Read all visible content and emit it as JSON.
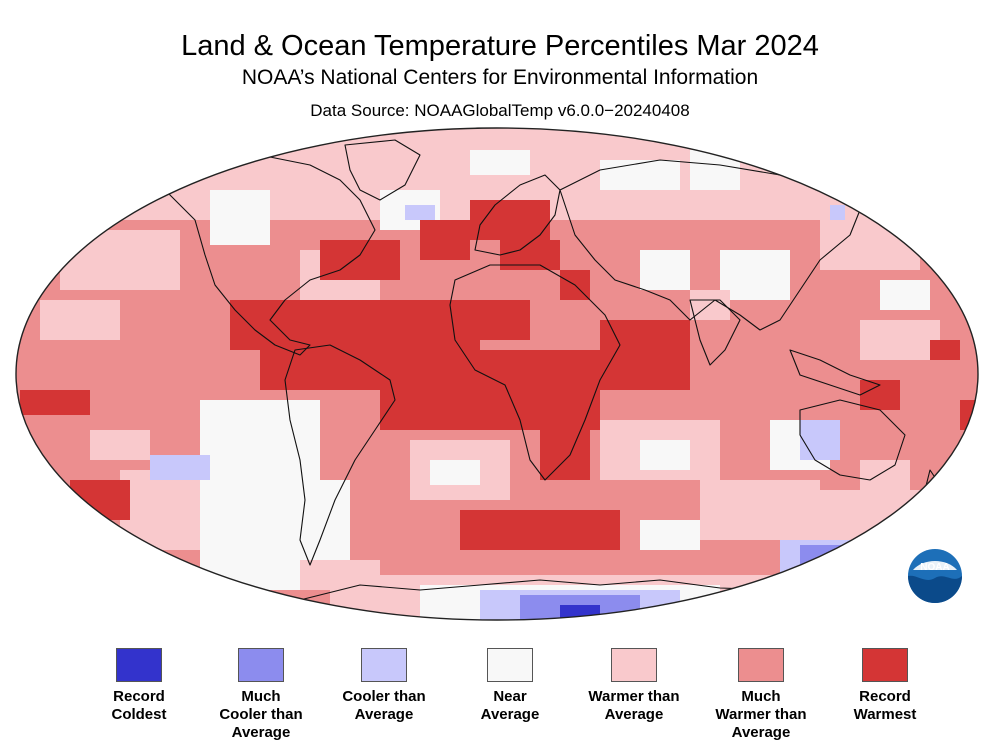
{
  "header": {
    "title": "Land & Ocean Temperature Percentiles Mar 2024",
    "subtitle": "NOAA’s National Centers for Environmental Information",
    "source": "Data Source: NOAAGlobalTemp v6.0.0−20240408"
  },
  "colors": {
    "record_coldest": "#3333cc",
    "much_cooler": "#8c8cee",
    "cooler": "#c8c8fb",
    "near": "#f8f8f8",
    "warmer": "#f9c9cc",
    "much_warmer": "#ec8e8f",
    "record_warmest": "#d43535"
  },
  "legend": [
    {
      "label": "Record\nColdest",
      "color": "#3333cc"
    },
    {
      "label": "Much\nCooler than\nAverage",
      "color": "#8c8cee"
    },
    {
      "label": "Cooler than\nAverage",
      "color": "#c8c8fb"
    },
    {
      "label": "Near\nAverage",
      "color": "#f8f8f8"
    },
    {
      "label": "Warmer than\nAverage",
      "color": "#f9c9cc"
    },
    {
      "label": "Much\nWarmer than\nAverage",
      "color": "#ec8e8f"
    },
    {
      "label": "Record\nWarmest",
      "color": "#d43535"
    }
  ],
  "logo": {
    "text": "NOAA"
  }
}
